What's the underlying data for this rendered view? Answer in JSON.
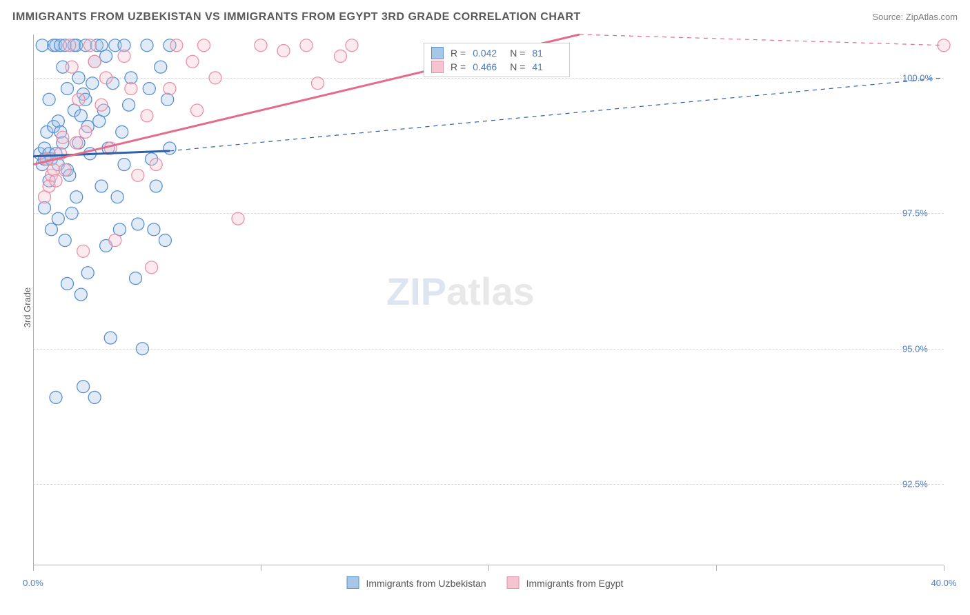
{
  "header": {
    "title": "IMMIGRANTS FROM UZBEKISTAN VS IMMIGRANTS FROM EGYPT 3RD GRADE CORRELATION CHART",
    "source": "Source: ZipAtlas.com"
  },
  "chart": {
    "type": "scatter",
    "ylabel": "3rd Grade",
    "xlim": [
      0,
      40
    ],
    "ylim": [
      91,
      100.8
    ],
    "background_color": "#ffffff",
    "grid_color": "#d8d8d8",
    "axis_color": "#b0b0b0",
    "tick_label_color": "#4a7ebf",
    "ylabel_color": "#606060",
    "yticks": [
      92.5,
      95.0,
      97.5,
      100.0
    ],
    "ytick_labels": [
      "92.5%",
      "95.0%",
      "97.5%",
      "100.0%"
    ],
    "xticks": [
      0,
      10,
      20,
      30,
      40
    ],
    "xtick_labels": [
      "0.0%",
      "",
      "",
      "",
      "40.0%"
    ],
    "marker_radius": 9,
    "marker_fill_opacity": 0.35,
    "series": [
      {
        "key": "uzbekistan",
        "label": "Immigrants from Uzbekistan",
        "color_stroke": "#5a8fd0",
        "color_fill": "#a7c7e7",
        "trend_color": "#2f5fa6",
        "trend_width": 3,
        "r": "0.042",
        "n": "81",
        "trend": {
          "x1": 0.0,
          "y1": 98.55,
          "x2": 6.0,
          "y2": 98.65
        },
        "trend_ext": {
          "x1": 6.0,
          "y1": 98.65,
          "x2": 40.0,
          "y2": 100.0,
          "dash": "6,6",
          "width": 1.2
        },
        "points": [
          [
            0.3,
            98.6
          ],
          [
            0.4,
            98.4
          ],
          [
            0.5,
            98.5
          ],
          [
            0.5,
            98.7
          ],
          [
            0.6,
            98.5
          ],
          [
            0.6,
            99.0
          ],
          [
            0.7,
            98.1
          ],
          [
            0.7,
            98.6
          ],
          [
            0.8,
            97.2
          ],
          [
            0.8,
            98.5
          ],
          [
            0.9,
            100.6
          ],
          [
            0.9,
            99.1
          ],
          [
            1.0,
            100.6
          ],
          [
            1.0,
            98.6
          ],
          [
            1.1,
            99.2
          ],
          [
            1.1,
            98.4
          ],
          [
            1.1,
            97.4
          ],
          [
            1.2,
            100.6
          ],
          [
            1.2,
            99.0
          ],
          [
            1.3,
            100.2
          ],
          [
            1.3,
            98.8
          ],
          [
            1.4,
            97.0
          ],
          [
            1.4,
            100.6
          ],
          [
            1.5,
            98.3
          ],
          [
            1.5,
            96.2
          ],
          [
            1.5,
            99.8
          ],
          [
            1.6,
            98.2
          ],
          [
            1.7,
            97.5
          ],
          [
            1.8,
            100.6
          ],
          [
            1.8,
            99.4
          ],
          [
            1.9,
            100.6
          ],
          [
            1.9,
            97.8
          ],
          [
            2.0,
            100.0
          ],
          [
            2.0,
            98.8
          ],
          [
            2.1,
            99.3
          ],
          [
            2.1,
            96.0
          ],
          [
            2.2,
            99.7
          ],
          [
            2.2,
            94.3
          ],
          [
            2.3,
            100.6
          ],
          [
            2.3,
            99.6
          ],
          [
            2.4,
            99.1
          ],
          [
            2.4,
            96.4
          ],
          [
            2.5,
            98.6
          ],
          [
            2.6,
            99.9
          ],
          [
            2.7,
            100.3
          ],
          [
            2.7,
            94.1
          ],
          [
            2.8,
            100.6
          ],
          [
            2.9,
            99.2
          ],
          [
            3.0,
            100.6
          ],
          [
            3.0,
            98.0
          ],
          [
            3.1,
            99.4
          ],
          [
            3.2,
            100.4
          ],
          [
            3.2,
            96.9
          ],
          [
            3.3,
            98.7
          ],
          [
            3.4,
            95.2
          ],
          [
            3.5,
            99.9
          ],
          [
            3.6,
            100.6
          ],
          [
            3.7,
            97.8
          ],
          [
            3.8,
            97.2
          ],
          [
            3.9,
            99.0
          ],
          [
            4.0,
            98.4
          ],
          [
            4.0,
            100.6
          ],
          [
            4.2,
            99.5
          ],
          [
            4.3,
            100.0
          ],
          [
            4.5,
            96.3
          ],
          [
            4.6,
            97.3
          ],
          [
            4.8,
            95.0
          ],
          [
            5.0,
            100.6
          ],
          [
            5.1,
            99.8
          ],
          [
            5.2,
            98.5
          ],
          [
            5.3,
            97.2
          ],
          [
            5.4,
            98.0
          ],
          [
            5.6,
            100.2
          ],
          [
            5.8,
            97.0
          ],
          [
            5.9,
            99.6
          ],
          [
            6.0,
            100.6
          ],
          [
            6.0,
            98.7
          ],
          [
            1.0,
            94.1
          ],
          [
            0.7,
            99.6
          ],
          [
            0.5,
            97.6
          ],
          [
            0.4,
            100.6
          ]
        ]
      },
      {
        "key": "egypt",
        "label": "Immigrants from Egypt",
        "color_stroke": "#e890a6",
        "color_fill": "#f5c4d0",
        "trend_color": "#e26d8b",
        "trend_width": 3,
        "r": "0.466",
        "n": "41",
        "trend": {
          "x1": 0.0,
          "y1": 98.4,
          "x2": 24.0,
          "y2": 100.8
        },
        "trend_ext": {
          "x1": 24.0,
          "y1": 100.8,
          "x2": 40.0,
          "y2": 100.6,
          "dash": "6,6",
          "width": 1.2
        },
        "points": [
          [
            0.5,
            97.8
          ],
          [
            0.6,
            98.5
          ],
          [
            0.7,
            98.0
          ],
          [
            0.8,
            98.2
          ],
          [
            0.9,
            98.3
          ],
          [
            1.0,
            98.1
          ],
          [
            1.2,
            98.6
          ],
          [
            1.3,
            98.9
          ],
          [
            1.4,
            98.3
          ],
          [
            1.6,
            100.6
          ],
          [
            1.7,
            100.2
          ],
          [
            1.9,
            98.8
          ],
          [
            2.0,
            99.6
          ],
          [
            2.2,
            96.8
          ],
          [
            2.3,
            99.0
          ],
          [
            2.5,
            100.6
          ],
          [
            2.7,
            100.3
          ],
          [
            3.0,
            99.5
          ],
          [
            3.2,
            100.0
          ],
          [
            3.4,
            98.7
          ],
          [
            3.6,
            97.0
          ],
          [
            4.0,
            100.4
          ],
          [
            4.3,
            99.8
          ],
          [
            4.6,
            98.2
          ],
          [
            5.0,
            99.3
          ],
          [
            5.2,
            96.5
          ],
          [
            5.4,
            98.4
          ],
          [
            6.0,
            99.8
          ],
          [
            6.3,
            100.6
          ],
          [
            7.0,
            100.3
          ],
          [
            7.2,
            99.4
          ],
          [
            7.5,
            100.6
          ],
          [
            8.0,
            100.0
          ],
          [
            9.0,
            97.4
          ],
          [
            10.0,
            100.6
          ],
          [
            11.0,
            100.5
          ],
          [
            12.0,
            100.6
          ],
          [
            12.5,
            99.9
          ],
          [
            13.5,
            100.4
          ],
          [
            14.0,
            100.6
          ],
          [
            40.0,
            100.6
          ]
        ]
      }
    ],
    "legend_bottom": [
      {
        "swatch_fill": "#a7c7e7",
        "swatch_stroke": "#5a8fd0",
        "label": "Immigrants from Uzbekistan"
      },
      {
        "swatch_fill": "#f5c4d0",
        "swatch_stroke": "#e890a6",
        "label": "Immigrants from Egypt"
      }
    ],
    "watermark": {
      "zip": "ZIP",
      "atlas": "atlas"
    }
  }
}
